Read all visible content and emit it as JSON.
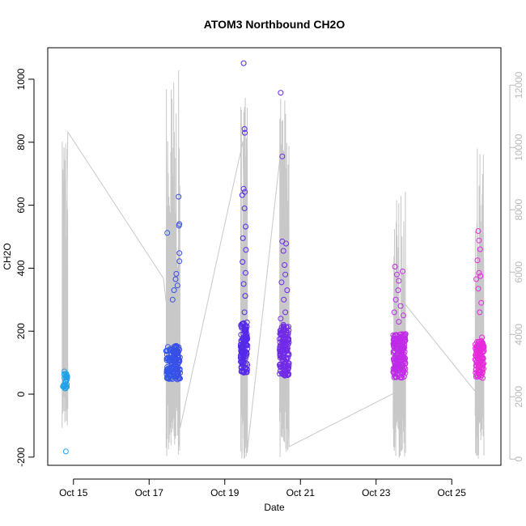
{
  "chart_data": {
    "type": "scatter",
    "title": "ATOM3 Northbound CH2O",
    "xlabel": "Date",
    "ylabel": "CH2O",
    "x_ticks": [
      "Oct 15",
      "Oct 17",
      "Oct 19",
      "Oct 21",
      "Oct 23",
      "Oct 25"
    ],
    "y_ticks": [
      "-200",
      "0",
      "200",
      "400",
      "600",
      "800",
      "1000"
    ],
    "y2_ticks": [
      "0",
      "2000",
      "4000",
      "6000",
      "8000",
      "10000",
      "12000"
    ],
    "xlim": [
      14.32,
      26.3
    ],
    "ylim": [
      -226,
      1100
    ],
    "y2lim": [
      -200,
      13200
    ],
    "grid": false,
    "legend": "none",
    "colors": {
      "line": "#c8c8c8",
      "right_axis": "#b8b8b8",
      "color_ramp": [
        "#1ab0e8",
        "#2a6ae8",
        "#4a2ae8",
        "#8a2ae8",
        "#c82ae8",
        "#f02ad8"
      ]
    },
    "series": [
      {
        "marker": "open-circle",
        "color_by": "time",
        "segments": [
          {
            "t0": 14.72,
            "t1": 14.84,
            "n": 26,
            "base": 40,
            "spread": 25,
            "high": [
              [
                14.8,
                -182
              ],
              [
                14.76,
                72
              ],
              [
                14.81,
                65
              ]
            ]
          },
          {
            "t0": 17.45,
            "t1": 17.82,
            "n": 150,
            "base": 95,
            "spread": 55,
            "high": [
              [
                17.48,
                512
              ],
              [
                17.78,
                627
              ],
              [
                17.8,
                540
              ],
              [
                17.79,
                535
              ],
              [
                17.8,
                448
              ],
              [
                17.8,
                422
              ],
              [
                17.72,
                382
              ],
              [
                17.7,
                365
              ],
              [
                17.75,
                345
              ],
              [
                17.66,
                330
              ],
              [
                17.62,
                300
              ]
            ]
          },
          {
            "t0": 19.42,
            "t1": 19.6,
            "n": 120,
            "base": 140,
            "spread": 80,
            "high": [
              [
                19.5,
                1051
              ],
              [
                19.52,
                842
              ],
              [
                19.53,
                830
              ],
              [
                19.46,
                632
              ],
              [
                19.5,
                652
              ],
              [
                19.53,
                642
              ],
              [
                19.52,
                590
              ],
              [
                19.55,
                532
              ],
              [
                19.48,
                495
              ],
              [
                19.56,
                458
              ],
              [
                19.47,
                420
              ],
              [
                19.55,
                385
              ],
              [
                19.5,
                350
              ],
              [
                19.54,
                312
              ],
              [
                19.52,
                260
              ],
              [
                19.56,
                210
              ]
            ]
          },
          {
            "t0": 20.45,
            "t1": 20.7,
            "n": 150,
            "base": 130,
            "spread": 80,
            "high": [
              [
                20.48,
                957
              ],
              [
                20.52,
                755
              ],
              [
                20.52,
                485
              ],
              [
                20.62,
                478
              ],
              [
                20.55,
                455
              ],
              [
                20.58,
                410
              ],
              [
                20.6,
                380
              ],
              [
                20.5,
                355
              ],
              [
                20.65,
                330
              ],
              [
                20.56,
                300
              ],
              [
                20.6,
                260
              ],
              [
                20.48,
                240
              ],
              [
                20.55,
                220
              ],
              [
                20.64,
                70
              ]
            ]
          },
          {
            "t0": 23.45,
            "t1": 23.78,
            "n": 190,
            "base": 115,
            "spread": 70,
            "high": [
              [
                23.5,
                405
              ],
              [
                23.55,
                380
              ],
              [
                23.6,
                360
              ],
              [
                23.7,
                390
              ],
              [
                23.58,
                330
              ],
              [
                23.52,
                300
              ],
              [
                23.65,
                280
              ],
              [
                23.48,
                260
              ],
              [
                23.72,
                250
              ],
              [
                23.6,
                230
              ]
            ]
          },
          {
            "t0": 25.62,
            "t1": 25.85,
            "n": 110,
            "base": 105,
            "spread": 60,
            "high": [
              [
                25.7,
                518
              ],
              [
                25.72,
                488
              ],
              [
                25.75,
                460
              ],
              [
                25.68,
                425
              ],
              [
                25.72,
                385
              ],
              [
                25.76,
                375
              ],
              [
                25.65,
                365
              ],
              [
                25.7,
                335
              ],
              [
                25.78,
                290
              ],
              [
                25.74,
                260
              ],
              [
                25.8,
                180
              ],
              [
                25.7,
                150
              ],
              [
                25.76,
                55
              ]
            ]
          }
        ]
      },
      {
        "name_axis": "right",
        "marker": "line",
        "color": "#c8c8c8",
        "anchors": [
          [
            14.72,
            6200
          ],
          [
            14.75,
            10000
          ],
          [
            14.8,
            4600
          ],
          [
            14.85,
            10500
          ],
          [
            17.38,
            5800
          ],
          [
            17.82,
            1000
          ],
          [
            19.48,
            10200
          ],
          [
            19.6,
            300
          ],
          [
            20.48,
            9900
          ],
          [
            20.7,
            400
          ],
          [
            23.45,
            2100
          ],
          [
            23.75,
            5000
          ],
          [
            25.6,
            2200
          ],
          [
            25.85,
            2700
          ]
        ],
        "bursts": [
          {
            "t0": 14.7,
            "t1": 14.85,
            "lo": 1000,
            "hi": 10600
          },
          {
            "t0": 17.45,
            "t1": 17.82,
            "lo": 0,
            "hi": 12500
          },
          {
            "t0": 19.42,
            "t1": 19.6,
            "lo": 0,
            "hi": 11800
          },
          {
            "t0": 20.45,
            "t1": 20.7,
            "lo": 0,
            "hi": 11600
          },
          {
            "t0": 23.45,
            "t1": 23.78,
            "lo": 0,
            "hi": 8700
          },
          {
            "t0": 25.62,
            "t1": 25.85,
            "lo": 0,
            "hi": 10000
          }
        ]
      }
    ]
  }
}
